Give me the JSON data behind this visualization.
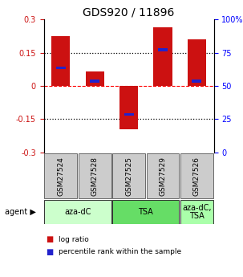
{
  "title": "GDS920 / 11896",
  "samples": [
    "GSM27524",
    "GSM27528",
    "GSM27525",
    "GSM27529",
    "GSM27526"
  ],
  "log_ratios": [
    0.225,
    0.065,
    -0.195,
    0.265,
    0.21
  ],
  "percentile_ranks": [
    0.635,
    0.535,
    0.285,
    0.77,
    0.535
  ],
  "ylim": [
    -0.3,
    0.3
  ],
  "yticks_left": [
    -0.3,
    -0.15,
    0.0,
    0.15,
    0.3
  ],
  "yticks_right_vals": [
    0,
    25,
    50,
    75,
    100
  ],
  "bar_color": "#cc1111",
  "pct_color": "#2222cc",
  "agent_groups": [
    {
      "label": "aza-dC",
      "cols": [
        0,
        1
      ],
      "color": "#ccffcc"
    },
    {
      "label": "TSA",
      "cols": [
        2,
        3
      ],
      "color": "#66dd66"
    },
    {
      "label": "aza-dC,\nTSA",
      "cols": [
        4
      ],
      "color": "#aaffaa"
    }
  ],
  "bar_width": 0.55,
  "pct_bar_width": 0.28,
  "pct_bar_height": 0.013,
  "title_fontsize": 10,
  "tick_fontsize": 7,
  "label_fontsize": 6.5,
  "agent_fontsize": 7,
  "legend_fontsize": 6.5
}
